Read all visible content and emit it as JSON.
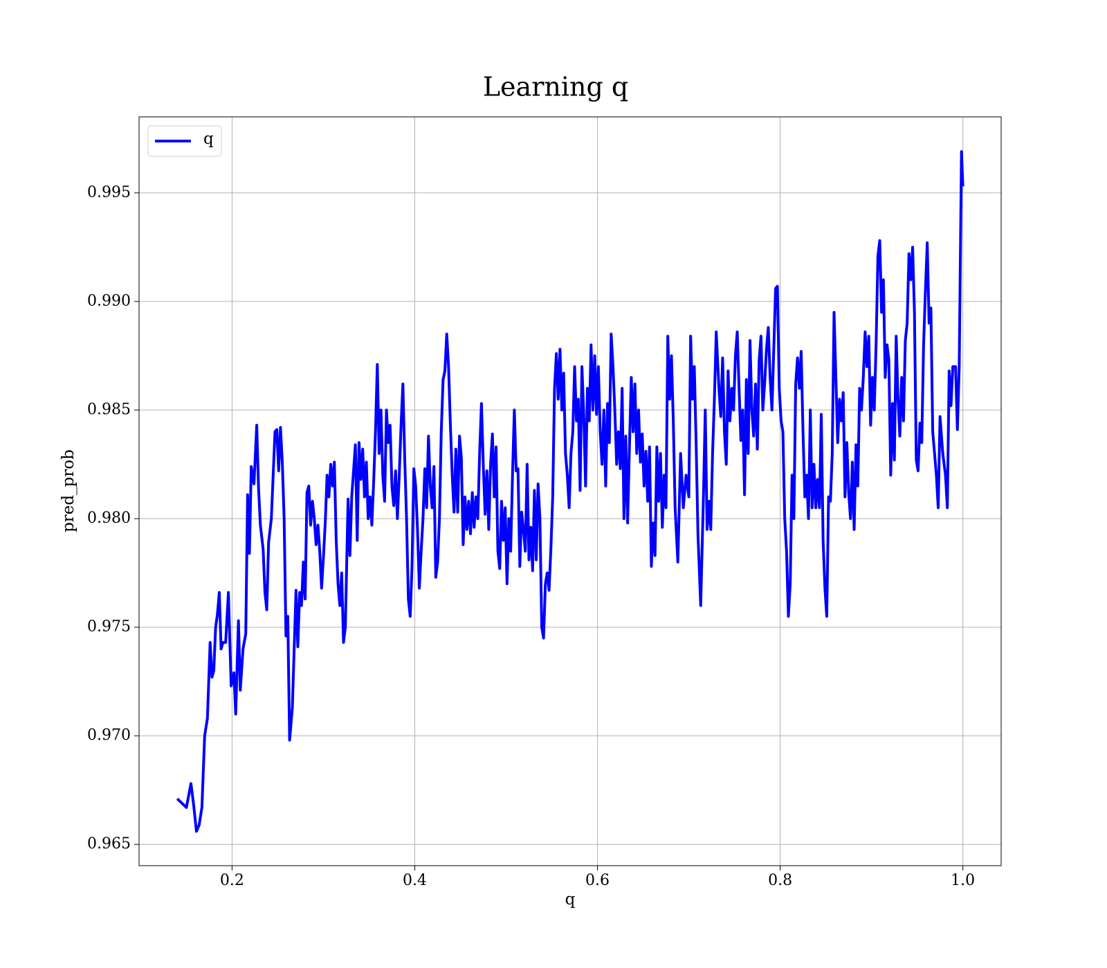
{
  "chart_data": {
    "type": "line",
    "title": "Learning q",
    "xlabel": "q",
    "ylabel": "pred_prob",
    "xlim": [
      0.0982,
      1.0419
    ],
    "ylim": [
      0.96402,
      0.9985
    ],
    "xticks": [
      0.2,
      0.4,
      0.6,
      0.8,
      {
        "value": 1,
        "label": "1.0"
      }
    ],
    "yticks": [
      0.965,
      {
        "value": 0.97,
        "label": "0.970"
      },
      0.975,
      {
        "value": 0.98,
        "label": "0.980"
      },
      0.985,
      {
        "value": 0.99,
        "label": "0.990"
      },
      0.995
    ],
    "grid": true,
    "legend": "upper left",
    "x": [
      0.14,
      0.15,
      0.155,
      0.158,
      0.161,
      0.164,
      0.167,
      0.17,
      0.173,
      0.176,
      0.178,
      0.18,
      0.182,
      0.184,
      0.186,
      0.188,
      0.19,
      0.193,
      0.196,
      0.199,
      0.202,
      0.204,
      0.207,
      0.209,
      0.212,
      0.215,
      0.217,
      0.219,
      0.221,
      0.224,
      0.227,
      0.229,
      0.231,
      0.234,
      0.236,
      0.238,
      0.24,
      0.243,
      0.245,
      0.247,
      0.249,
      0.251,
      0.253,
      0.255,
      0.257,
      0.259,
      0.261,
      0.263,
      0.266,
      0.268,
      0.27,
      0.272,
      0.274,
      0.276,
      0.278,
      0.28,
      0.282,
      0.284,
      0.286,
      0.288,
      0.29,
      0.292,
      0.294,
      0.296,
      0.298,
      0.3,
      0.302,
      0.304,
      0.306,
      0.308,
      0.31,
      0.312,
      0.314,
      0.316,
      0.318,
      0.32,
      0.322,
      0.324,
      0.327,
      0.329,
      0.331,
      0.333,
      0.335,
      0.337,
      0.339,
      0.341,
      0.343,
      0.345,
      0.347,
      0.349,
      0.351,
      0.353,
      0.355,
      0.357,
      0.359,
      0.361,
      0.363,
      0.365,
      0.367,
      0.369,
      0.371,
      0.373,
      0.375,
      0.377,
      0.379,
      0.381,
      0.383,
      0.385,
      0.387,
      0.389,
      0.391,
      0.393,
      0.395,
      0.397,
      0.399,
      0.401,
      0.403,
      0.405,
      0.407,
      0.409,
      0.411,
      0.413,
      0.415,
      0.417,
      0.419,
      0.421,
      0.423,
      0.425,
      0.427,
      0.429,
      0.431,
      0.433,
      0.435,
      0.437,
      0.439,
      0.441,
      0.443,
      0.445,
      0.447,
      0.449,
      0.451,
      0.453,
      0.455,
      0.457,
      0.459,
      0.461,
      0.463,
      0.465,
      0.467,
      0.469,
      0.471,
      0.473,
      0.475,
      0.477,
      0.479,
      0.481,
      0.483,
      0.485,
      0.487,
      0.489,
      0.491,
      0.493,
      0.495,
      0.497,
      0.499,
      0.501,
      0.503,
      0.505,
      0.507,
      0.509,
      0.511,
      0.513,
      0.515,
      0.517,
      0.519,
      0.521,
      0.523,
      0.525,
      0.527,
      0.529,
      0.531,
      0.533,
      0.535,
      0.537,
      0.539,
      0.541,
      0.543,
      0.545,
      0.547,
      0.549,
      0.551,
      0.553,
      0.555,
      0.557,
      0.559,
      0.561,
      0.563,
      0.565,
      0.567,
      0.569,
      0.571,
      0.573,
      0.575,
      0.577,
      0.579,
      0.581,
      0.583,
      0.585,
      0.587,
      0.589,
      0.591,
      0.593,
      0.595,
      0.597,
      0.599,
      0.601,
      0.603,
      0.605,
      0.607,
      0.609,
      0.611,
      0.613,
      0.615,
      0.617,
      0.619,
      0.621,
      0.623,
      0.625,
      0.627,
      0.629,
      0.631,
      0.633,
      0.635,
      0.637,
      0.639,
      0.641,
      0.643,
      0.645,
      0.647,
      0.649,
      0.651,
      0.653,
      0.655,
      0.657,
      0.659,
      0.661,
      0.663,
      0.665,
      0.667,
      0.669,
      0.671,
      0.673,
      0.675,
      0.677,
      0.679,
      0.681,
      0.683,
      0.685,
      0.688,
      0.691,
      0.694,
      0.697,
      0.7,
      0.702,
      0.704,
      0.706,
      0.708,
      0.71,
      0.713,
      0.716,
      0.718,
      0.72,
      0.722,
      0.724,
      0.726,
      0.728,
      0.73,
      0.733,
      0.735,
      0.737,
      0.739,
      0.741,
      0.743,
      0.745,
      0.747,
      0.749,
      0.751,
      0.753,
      0.755,
      0.757,
      0.759,
      0.761,
      0.763,
      0.765,
      0.767,
      0.769,
      0.771,
      0.773,
      0.775,
      0.777,
      0.779,
      0.781,
      0.783,
      0.785,
      0.787,
      0.789,
      0.791,
      0.793,
      0.795,
      0.797,
      0.799,
      0.801,
      0.803,
      0.805,
      0.807,
      0.809,
      0.811,
      0.813,
      0.815,
      0.817,
      0.819,
      0.821,
      0.823,
      0.825,
      0.827,
      0.829,
      0.831,
      0.833,
      0.835,
      0.837,
      0.839,
      0.841,
      0.843,
      0.845,
      0.847,
      0.849,
      0.851,
      0.853,
      0.855,
      0.857,
      0.859,
      0.861,
      0.863,
      0.865,
      0.867,
      0.869,
      0.871,
      0.873,
      0.875,
      0.877,
      0.879,
      0.881,
      0.883,
      0.885,
      0.887,
      0.889,
      0.891,
      0.893,
      0.895,
      0.897,
      0.899,
      0.901,
      0.903,
      0.905,
      0.907,
      0.909,
      0.911,
      0.913,
      0.915,
      0.917,
      0.919,
      0.921,
      0.923,
      0.925,
      0.927,
      0.929,
      0.931,
      0.933,
      0.935,
      0.937,
      0.939,
      0.941,
      0.943,
      0.945,
      0.947,
      0.949,
      0.951,
      0.953,
      0.955,
      0.957,
      0.959,
      0.961,
      0.963,
      0.965,
      0.967,
      0.969,
      0.971,
      0.973,
      0.975,
      0.978,
      0.981,
      0.983,
      0.985,
      0.987,
      0.989,
      0.992,
      0.994,
      0.996,
      0.9985,
      1.0
    ],
    "series": [
      {
        "name": "q",
        "color": "#0000ff",
        "values": [
          0.9671,
          0.9667,
          0.9678,
          0.9668,
          0.9656,
          0.9659,
          0.9667,
          0.97,
          0.9708,
          0.9743,
          0.9727,
          0.973,
          0.975,
          0.9756,
          0.9766,
          0.974,
          0.9743,
          0.9743,
          0.9766,
          0.9723,
          0.9729,
          0.971,
          0.9753,
          0.9721,
          0.974,
          0.9747,
          0.9811,
          0.9784,
          0.9824,
          0.9816,
          0.9843,
          0.9814,
          0.9797,
          0.9786,
          0.9766,
          0.9758,
          0.9789,
          0.98,
          0.982,
          0.984,
          0.9841,
          0.9822,
          0.9842,
          0.9826,
          0.98,
          0.9746,
          0.9755,
          0.9698,
          0.9713,
          0.974,
          0.9767,
          0.9741,
          0.9766,
          0.976,
          0.978,
          0.9763,
          0.9812,
          0.9815,
          0.9797,
          0.9808,
          0.98,
          0.9788,
          0.9797,
          0.9785,
          0.9768,
          0.9782,
          0.9798,
          0.982,
          0.981,
          0.9825,
          0.9815,
          0.9826,
          0.979,
          0.977,
          0.976,
          0.9775,
          0.9743,
          0.975,
          0.9809,
          0.9783,
          0.981,
          0.9822,
          0.9834,
          0.979,
          0.9835,
          0.9818,
          0.9832,
          0.981,
          0.9826,
          0.98,
          0.981,
          0.9797,
          0.9817,
          0.984,
          0.9871,
          0.983,
          0.985,
          0.982,
          0.9808,
          0.985,
          0.9835,
          0.9843,
          0.9815,
          0.9806,
          0.9822,
          0.98,
          0.982,
          0.9843,
          0.9862,
          0.9828,
          0.98,
          0.9763,
          0.9755,
          0.9778,
          0.9823,
          0.9815,
          0.9795,
          0.9768,
          0.9785,
          0.98,
          0.9823,
          0.9805,
          0.9838,
          0.9815,
          0.9805,
          0.9824,
          0.9773,
          0.978,
          0.98,
          0.984,
          0.9864,
          0.9868,
          0.9885,
          0.987,
          0.9843,
          0.982,
          0.9803,
          0.9832,
          0.9803,
          0.9838,
          0.9828,
          0.9788,
          0.981,
          0.9795,
          0.9808,
          0.9793,
          0.9812,
          0.9796,
          0.981,
          0.98,
          0.983,
          0.9853,
          0.9825,
          0.9802,
          0.9822,
          0.9795,
          0.9825,
          0.9839,
          0.981,
          0.9833,
          0.9785,
          0.9777,
          0.9808,
          0.979,
          0.9805,
          0.977,
          0.98,
          0.9785,
          0.982,
          0.985,
          0.9822,
          0.9823,
          0.9778,
          0.9803,
          0.9795,
          0.9785,
          0.9825,
          0.9781,
          0.9796,
          0.9776,
          0.9813,
          0.9781,
          0.9816,
          0.98,
          0.975,
          0.9745,
          0.977,
          0.9775,
          0.9767,
          0.9786,
          0.981,
          0.986,
          0.9876,
          0.9855,
          0.9878,
          0.985,
          0.9867,
          0.983,
          0.982,
          0.9805,
          0.983,
          0.984,
          0.987,
          0.9845,
          0.9855,
          0.9813,
          0.987,
          0.9848,
          0.9815,
          0.986,
          0.9845,
          0.988,
          0.985,
          0.9875,
          0.9848,
          0.987,
          0.984,
          0.9825,
          0.985,
          0.9815,
          0.9853,
          0.9835,
          0.9885,
          0.987,
          0.985,
          0.9825,
          0.984,
          0.9823,
          0.986,
          0.98,
          0.9838,
          0.9798,
          0.9833,
          0.9865,
          0.984,
          0.9862,
          0.983,
          0.985,
          0.9826,
          0.9839,
          0.9815,
          0.9831,
          0.9808,
          0.9833,
          0.9778,
          0.9798,
          0.9783,
          0.9833,
          0.9808,
          0.983,
          0.9796,
          0.982,
          0.9805,
          0.9884,
          0.9855,
          0.9875,
          0.9845,
          0.9805,
          0.978,
          0.983,
          0.9805,
          0.982,
          0.981,
          0.9884,
          0.9855,
          0.987,
          0.9835,
          0.9793,
          0.976,
          0.981,
          0.985,
          0.9795,
          0.9808,
          0.9795,
          0.983,
          0.9855,
          0.9886,
          0.986,
          0.9847,
          0.9874,
          0.984,
          0.9825,
          0.9868,
          0.9845,
          0.986,
          0.985,
          0.9875,
          0.9886,
          0.986,
          0.9836,
          0.985,
          0.9811,
          0.9864,
          0.983,
          0.9882,
          0.985,
          0.9838,
          0.9862,
          0.9832,
          0.9873,
          0.9884,
          0.985,
          0.9862,
          0.9878,
          0.9888,
          0.9865,
          0.985,
          0.9878,
          0.9906,
          0.9907,
          0.986,
          0.9845,
          0.984,
          0.98,
          0.9785,
          0.9755,
          0.977,
          0.982,
          0.98,
          0.9862,
          0.9874,
          0.986,
          0.9877,
          0.984,
          0.981,
          0.982,
          0.98,
          0.985,
          0.9805,
          0.9825,
          0.9805,
          0.9818,
          0.9805,
          0.9848,
          0.979,
          0.9768,
          0.9755,
          0.981,
          0.9808,
          0.983,
          0.9895,
          0.9865,
          0.9835,
          0.9855,
          0.9845,
          0.9858,
          0.981,
          0.9835,
          0.9812,
          0.98,
          0.9826,
          0.9795,
          0.9834,
          0.9815,
          0.986,
          0.985,
          0.9865,
          0.9886,
          0.987,
          0.9884,
          0.9843,
          0.9865,
          0.985,
          0.988,
          0.9921,
          0.9928,
          0.9895,
          0.991,
          0.9865,
          0.988,
          0.9873,
          0.982,
          0.9853,
          0.9827,
          0.9884,
          0.9855,
          0.9838,
          0.9865,
          0.9845,
          0.9882,
          0.989,
          0.9922,
          0.991,
          0.9925,
          0.9895,
          0.9827,
          0.9822,
          0.9844,
          0.9835,
          0.988,
          0.9905,
          0.9927,
          0.989,
          0.9897,
          0.984,
          0.983,
          0.982,
          0.9805,
          0.9847,
          0.983,
          0.982,
          0.9805,
          0.9868,
          0.9852,
          0.987,
          0.987,
          0.9841,
          0.987,
          0.9969,
          0.9953
        ]
      }
    ]
  }
}
